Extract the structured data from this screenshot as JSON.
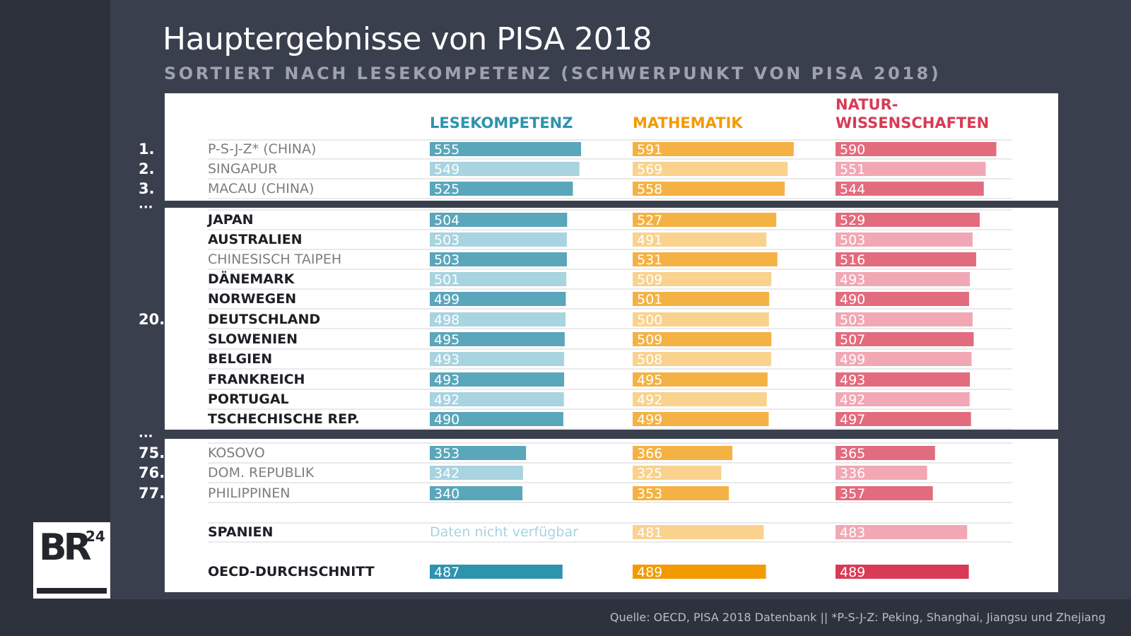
{
  "title": "Hauptergebnisse von PISA 2018",
  "subtitle": "SORTIERT NACH LESEKOMPETENZ (SCHWERPUNKT VON PISA 2018)",
  "source": "Quelle: OECD, PISA 2018 Datenbank || *P-S-J-Z: Peking, Shanghai, Jiangsu und Zhejiang",
  "logo": {
    "text": "BR",
    "superscript": "24"
  },
  "colors": {
    "background": "#3a3f4d",
    "reading": [
      "#5aa6bb",
      "#a8d3e0"
    ],
    "math": [
      "#f4b244",
      "#f9d28d"
    ],
    "science": [
      "#e36b7e",
      "#f1a8b4"
    ],
    "oecd": [
      "#2e93ad",
      "#f29a00",
      "#d93a55"
    ],
    "label_text": [
      "#1c1f24",
      "#7d7d7d"
    ],
    "reading_missing": "#a8d3e0"
  },
  "chart_data": {
    "type": "bar",
    "title": "Hauptergebnisse von PISA 2018",
    "subtitle": "SORTIERT NACH LESEKOMPETENZ (SCHWERPUNKT VON PISA 2018)",
    "series": [
      {
        "name": "LESEKOMPETENZ",
        "key": "reading"
      },
      {
        "name": "MATHEMATIK",
        "key": "math"
      },
      {
        "name": "NATUR-\nWISSENSCHAFTEN",
        "key": "science"
      }
    ],
    "xlim": [
      0,
      600
    ],
    "missing_text": "Daten nicht verfügbar",
    "rows": [
      {
        "rank": "1.",
        "name": "P-S-J-Z* (CHINA)",
        "bold": false,
        "shade": 0,
        "reading": 555,
        "math": 591,
        "science": 590
      },
      {
        "rank": "2.",
        "name": "SINGAPUR",
        "bold": false,
        "shade": 1,
        "reading": 549,
        "math": 569,
        "science": 551
      },
      {
        "rank": "3.",
        "name": "MACAU (CHINA)",
        "bold": false,
        "shade": 0,
        "reading": 525,
        "math": 558,
        "science": 544
      },
      {
        "rank": "...",
        "gap": true
      },
      {
        "rank": "",
        "name": "JAPAN",
        "bold": true,
        "shade": 0,
        "reading": 504,
        "math": 527,
        "science": 529
      },
      {
        "rank": "",
        "name": "AUSTRALIEN",
        "bold": true,
        "shade": 1,
        "reading": 503,
        "math": 491,
        "science": 503
      },
      {
        "rank": "",
        "name": "CHINESISCH TAIPEH",
        "bold": false,
        "shade": 0,
        "reading": 503,
        "math": 531,
        "science": 516
      },
      {
        "rank": "",
        "name": "DÄNEMARK",
        "bold": true,
        "shade": 1,
        "reading": 501,
        "math": 509,
        "science": 493
      },
      {
        "rank": "",
        "name": "NORWEGEN",
        "bold": true,
        "shade": 0,
        "reading": 499,
        "math": 501,
        "science": 490
      },
      {
        "rank": "20.",
        "name": "DEUTSCHLAND",
        "bold": true,
        "shade": 1,
        "reading": 498,
        "math": 500,
        "science": 503
      },
      {
        "rank": "",
        "name": "SLOWENIEN",
        "bold": true,
        "shade": 0,
        "reading": 495,
        "math": 509,
        "science": 507
      },
      {
        "rank": "",
        "name": "BELGIEN",
        "bold": true,
        "shade": 1,
        "reading": 493,
        "math": 508,
        "science": 499
      },
      {
        "rank": "",
        "name": "FRANKREICH",
        "bold": true,
        "shade": 0,
        "reading": 493,
        "math": 495,
        "science": 493
      },
      {
        "rank": "",
        "name": "PORTUGAL",
        "bold": true,
        "shade": 1,
        "reading": 492,
        "math": 492,
        "science": 492
      },
      {
        "rank": "",
        "name": "TSCHECHISCHE REP.",
        "bold": true,
        "shade": 0,
        "reading": 490,
        "math": 499,
        "science": 497
      },
      {
        "rank": "...",
        "gap": true
      },
      {
        "rank": "75.",
        "name": "KOSOVO",
        "bold": false,
        "shade": 0,
        "reading": 353,
        "math": 366,
        "science": 365
      },
      {
        "rank": "76.",
        "name": "DOM. REPUBLIK",
        "bold": false,
        "shade": 1,
        "reading": 342,
        "math": 325,
        "science": 336
      },
      {
        "rank": "77.",
        "name": "PHILIPPINEN",
        "bold": false,
        "shade": 0,
        "reading": 340,
        "math": 353,
        "science": 357
      },
      {
        "rank": "",
        "name": "SPANIEN",
        "bold": true,
        "shade": 1,
        "reading": null,
        "math": 481,
        "science": 483
      },
      {
        "rank": "",
        "name": "OECD-DURCHSCHNITT",
        "bold": true,
        "shade": 2,
        "reading": 487,
        "math": 489,
        "science": 489
      }
    ]
  }
}
